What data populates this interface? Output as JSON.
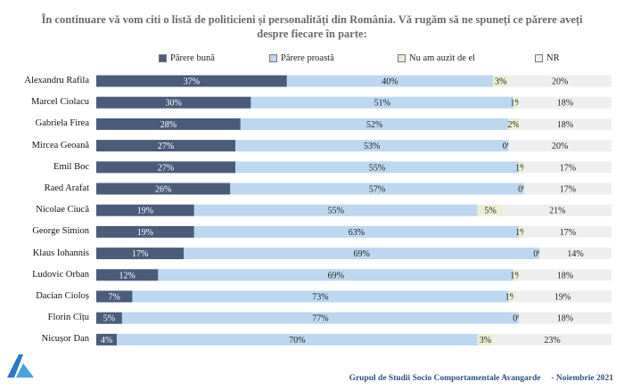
{
  "title_line1": "În continuare vă vom citi o listă de politicieni și personalități din România. Vă rugăm să ne spuneți ce părere aveți",
  "title_line2": "despre fiecare în parte:",
  "footer_source": "Grupul de Studii Socio Comportamentale Avangarde",
  "footer_date": "- Noiembrie 2021",
  "colors": {
    "buna": "#4a5c7a",
    "proasta": "#bcd7ef",
    "nu_am_auzit": "#e9efd3",
    "nr": "#eeeeee"
  },
  "chart_data": {
    "type": "bar",
    "orientation": "horizontal",
    "stacked": true,
    "percent_stacked": true,
    "legend_position": "top",
    "categories": [
      "Alexandru Rafila",
      "Marcel Ciolacu",
      "Gabriela Firea",
      "Mircea Geoană",
      "Emil Boc",
      "Raed Arafat",
      "Nicolae Ciucă",
      "George Simion",
      "Klaus Iohannis",
      "Ludovic Orban",
      "Dacian Cioloș",
      "Florin Cîțu",
      "Nicușor Dan"
    ],
    "series": [
      {
        "name": "Părere bună",
        "values": [
          37,
          30,
          28,
          27,
          27,
          26,
          19,
          19,
          17,
          12,
          7,
          5,
          4
        ]
      },
      {
        "name": "Părere proastă",
        "values": [
          40,
          51,
          52,
          53,
          55,
          57,
          55,
          63,
          69,
          69,
          73,
          77,
          70
        ]
      },
      {
        "name": "Nu am auzit de el",
        "values": [
          3,
          1,
          2,
          0,
          1,
          0,
          5,
          1,
          0,
          1,
          1,
          0,
          3
        ]
      },
      {
        "name": "NR",
        "values": [
          20,
          18,
          18,
          20,
          17,
          17,
          21,
          17,
          14,
          18,
          19,
          18,
          23
        ]
      }
    ],
    "value_suffix": "%"
  }
}
